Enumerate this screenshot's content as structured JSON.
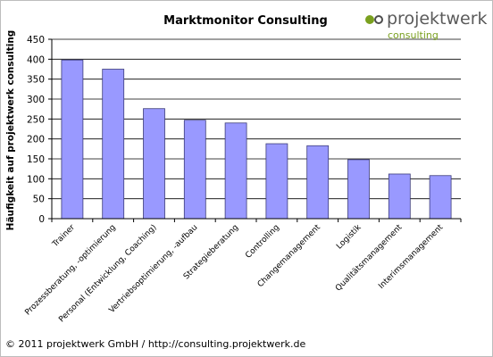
{
  "chart_data": {
    "type": "bar",
    "title": "Marktmonitor Consulting",
    "xlabel": "",
    "ylabel": "Häufigkeit auf projektwerk consulting",
    "ylim": [
      0,
      450
    ],
    "yticks": [
      0,
      50,
      100,
      150,
      200,
      250,
      300,
      350,
      400,
      450
    ],
    "grid": true,
    "categories": [
      "Trainer",
      "Prozessberatung, -optimierung",
      "Personal (Entwicklung, Coaching)",
      "Vertriebsoptimierung, -aufbau",
      "Strategieberatung",
      "Controlling",
      "Changemanagement",
      "Logistik",
      "Qualitätsmanagement",
      "Interimsmanagement"
    ],
    "values": [
      398,
      375,
      276,
      247,
      240,
      188,
      183,
      148,
      112,
      108
    ],
    "colors": {
      "bar": "#9999ff",
      "bar_stroke": "#3d3d7a",
      "grid": "#000000"
    }
  },
  "logo": {
    "name": "projektwerk",
    "sub": "consulting",
    "dot_green": "#7aa01f",
    "dot_dark": "#4d4d4d"
  },
  "footer": "© 2011 projektwerk GmbH / http://consulting.projektwerk.de"
}
